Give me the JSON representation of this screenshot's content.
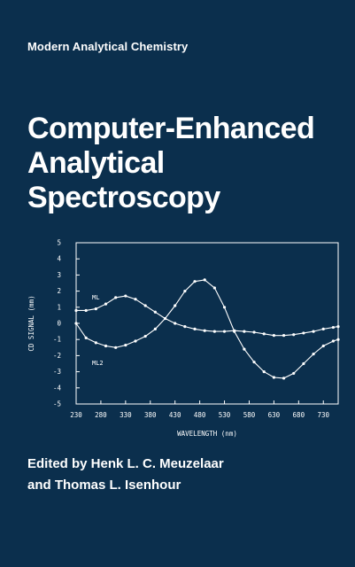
{
  "cover": {
    "series": "Modern Analytical Chemistry",
    "title_lines": [
      "Computer-Enhanced",
      "Analytical",
      "Spectroscopy"
    ],
    "editor_lines": [
      "Edited by Henk L. C. Meuzelaar",
      "and Thomas L. Isenhour"
    ],
    "background_color": "#0b2f4d",
    "text_color": "#ffffff"
  },
  "chart_data": {
    "type": "line",
    "xlabel": "WAVELENGTH (nm)",
    "ylabel": "CD SIGNAL (mm)",
    "xlim": [
      230,
      760
    ],
    "ylim": [
      -5,
      5
    ],
    "xticks": [
      230,
      280,
      330,
      380,
      430,
      480,
      530,
      580,
      630,
      680,
      730
    ],
    "yticks": [
      5,
      4,
      3,
      2,
      1,
      0,
      -1,
      -2,
      -3,
      -4,
      -5
    ],
    "grid": false,
    "series": [
      {
        "name": "ML",
        "x": [
          230,
          250,
          270,
          290,
          310,
          330,
          350,
          370,
          390,
          410,
          430,
          450,
          470,
          490,
          510,
          530,
          550,
          570,
          590,
          610,
          630,
          650,
          670,
          690,
          710,
          730,
          750,
          760
        ],
        "y": [
          0.8,
          0.8,
          0.9,
          1.2,
          1.6,
          1.7,
          1.5,
          1.1,
          0.7,
          0.3,
          0.0,
          -0.2,
          -0.35,
          -0.45,
          -0.5,
          -0.5,
          -0.45,
          -0.5,
          -0.55,
          -0.65,
          -0.75,
          -0.75,
          -0.7,
          -0.6,
          -0.5,
          -0.35,
          -0.25,
          -0.2
        ]
      },
      {
        "name": "ML2",
        "x": [
          230,
          250,
          270,
          290,
          310,
          330,
          350,
          370,
          390,
          410,
          430,
          450,
          470,
          490,
          510,
          530,
          550,
          570,
          590,
          610,
          630,
          650,
          670,
          690,
          710,
          730,
          750,
          760
        ],
        "y": [
          0.0,
          -0.9,
          -1.2,
          -1.4,
          -1.5,
          -1.35,
          -1.1,
          -0.8,
          -0.35,
          0.3,
          1.1,
          2.0,
          2.6,
          2.7,
          2.2,
          1.0,
          -0.5,
          -1.6,
          -2.4,
          -3.0,
          -3.35,
          -3.4,
          -3.1,
          -2.5,
          -1.9,
          -1.4,
          -1.1,
          -1.0
        ]
      }
    ]
  }
}
